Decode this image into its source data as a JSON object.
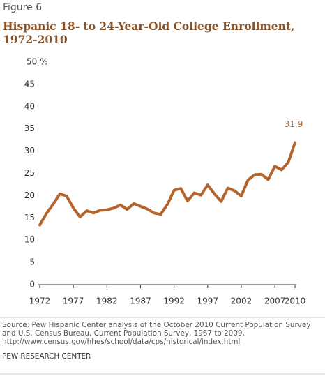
{
  "chart_data": {
    "type": "line",
    "figure_label": "Figure 6",
    "title": "Hispanic 18- to 24-Year-Old College Enrollment, 1972-2010",
    "x": [
      1972,
      1973,
      1974,
      1975,
      1976,
      1977,
      1978,
      1979,
      1980,
      1981,
      1982,
      1983,
      1984,
      1985,
      1986,
      1987,
      1988,
      1989,
      1990,
      1991,
      1992,
      1993,
      1994,
      1995,
      1996,
      1997,
      1998,
      1999,
      2000,
      2001,
      2002,
      2003,
      2004,
      2005,
      2006,
      2007,
      2008,
      2009,
      2010
    ],
    "series": [
      {
        "name": "Hispanic 18- to 24-year-old college enrollment",
        "color": "#b5652b",
        "values": [
          13.4,
          16.0,
          18.1,
          20.4,
          19.9,
          17.2,
          15.2,
          16.6,
          16.1,
          16.7,
          16.8,
          17.2,
          17.9,
          16.9,
          18.2,
          17.6,
          17.0,
          16.1,
          15.8,
          18.0,
          21.2,
          21.6,
          18.8,
          20.6,
          20.1,
          22.4,
          20.4,
          18.7,
          21.7,
          21.1,
          19.9,
          23.5,
          24.7,
          24.8,
          23.6,
          26.6,
          25.8,
          27.5,
          31.9
        ]
      }
    ],
    "xlim": [
      1972,
      2010
    ],
    "xticks": [
      1972,
      1977,
      1982,
      1987,
      1992,
      1997,
      2002,
      2007,
      2010
    ],
    "ylim": [
      0,
      50
    ],
    "yticks": [
      0,
      5,
      10,
      15,
      20,
      25,
      30,
      35,
      40,
      45,
      {
        "value": 50,
        "label": "50 %"
      }
    ],
    "grid": false,
    "source": "Source: Pew Hispanic Center analysis of the October 2010 Current Population Survey and U.S. Census Bureau, Current Population Survey, 1967 to 2009, ",
    "source_url": "http://www.census.gov/hhes/school/data/cps/historical/index.html",
    "footer": "PEW RESEARCH CENTER"
  }
}
